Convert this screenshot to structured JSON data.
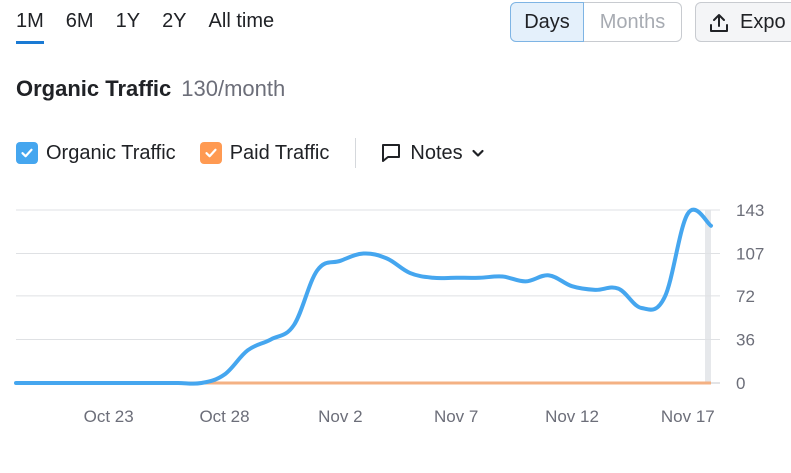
{
  "range_tabs": [
    "1M",
    "6M",
    "1Y",
    "2Y",
    "All time"
  ],
  "active_range": "1M",
  "granularity": {
    "days": "Days",
    "months": "Months",
    "selected": "Days"
  },
  "export_label": "Expo",
  "header": {
    "title": "Organic Traffic",
    "value": "130/month"
  },
  "legend": {
    "organic": {
      "label": "Organic Traffic",
      "color": "#45a6ef",
      "checked": true
    },
    "paid": {
      "label": "Paid Traffic",
      "color": "#ff9a52",
      "checked": true
    },
    "notes_label": "Notes"
  },
  "chart_data": {
    "type": "line",
    "x_tick_labels": [
      "Oct 23",
      "Oct 28",
      "Nov 2",
      "Nov 7",
      "Nov 12",
      "Nov 17"
    ],
    "y_ticks": [
      143,
      107,
      72,
      36,
      0
    ],
    "ylim": [
      0,
      143
    ],
    "grid": true,
    "series": [
      {
        "name": "Organic Traffic",
        "color": "#45a6ef",
        "x": [
          "Oct 19",
          "Oct 20",
          "Oct 21",
          "Oct 22",
          "Oct 23",
          "Oct 24",
          "Oct 25",
          "Oct 26",
          "Oct 27",
          "Oct 28",
          "Oct 29",
          "Oct 30",
          "Oct 31",
          "Nov 1",
          "Nov 2",
          "Nov 3",
          "Nov 4",
          "Nov 5",
          "Nov 6",
          "Nov 7",
          "Nov 8",
          "Nov 9",
          "Nov 10",
          "Nov 11",
          "Nov 12",
          "Nov 13",
          "Nov 14",
          "Nov 15",
          "Nov 16",
          "Nov 17",
          "Nov 18"
        ],
        "values": [
          0,
          0,
          0,
          0,
          0,
          0,
          0,
          0,
          0,
          7,
          27,
          36,
          48,
          93,
          101,
          107,
          103,
          91,
          87,
          87,
          87,
          88,
          84,
          89,
          80,
          77,
          78,
          62,
          71,
          140,
          130
        ]
      },
      {
        "name": "Paid Traffic",
        "color": "#f4b183",
        "x": [
          "Oct 19",
          "Nov 18"
        ],
        "values": [
          0,
          0
        ]
      }
    ]
  }
}
